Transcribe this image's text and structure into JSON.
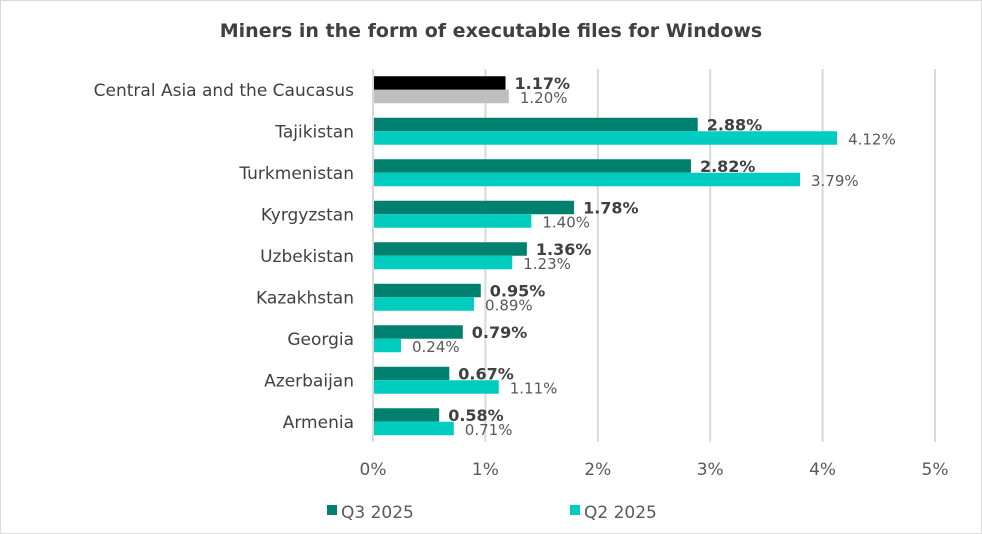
{
  "chart_data": {
    "type": "bar",
    "orientation": "horizontal",
    "title": "Miners in the form of executable files for Windows",
    "categories": [
      "Central Asia and the Caucasus",
      "Tajikistan",
      "Turkmenistan",
      "Kyrgyzstan",
      "Uzbekistan",
      "Kazakhstan",
      "Georgia",
      "Azerbaijan",
      "Armenia"
    ],
    "series": [
      {
        "name": "Q3 2025",
        "color": "#008170",
        "highlight_color": "#000000",
        "values": [
          1.17,
          2.88,
          2.82,
          1.78,
          1.36,
          0.95,
          0.79,
          0.67,
          0.58
        ],
        "labels": [
          "1.17%",
          "2.88%",
          "2.82%",
          "1.78%",
          "1.36%",
          "0.95%",
          "0.79%",
          "0.67%",
          "0.58%"
        ]
      },
      {
        "name": "Q2 2025",
        "color": "#00CCC0",
        "highlight_color": "#BFBFBF",
        "values": [
          1.2,
          4.12,
          3.79,
          1.4,
          1.23,
          0.89,
          0.24,
          1.11,
          0.71
        ],
        "labels": [
          "1.20%",
          "4.12%",
          "3.79%",
          "1.40%",
          "1.23%",
          "0.89%",
          "0.24%",
          "1.11%",
          "0.71%"
        ]
      }
    ],
    "xlim": [
      0,
      5
    ],
    "x_ticks": [
      "0%",
      "1%",
      "2%",
      "3%",
      "4%",
      "5%"
    ],
    "xlabel": "",
    "ylabel": "",
    "grid": "vertical",
    "legend": "bottom"
  }
}
